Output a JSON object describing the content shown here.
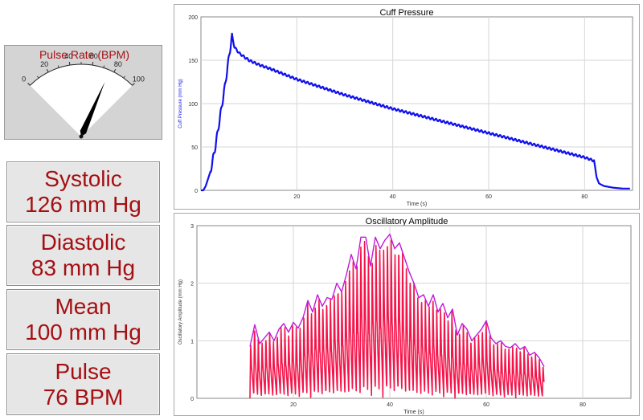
{
  "gauge": {
    "title": "Pulse Rate (BPM)",
    "ticks": [
      "0",
      "20",
      "40",
      "60",
      "80",
      "100"
    ],
    "min": 0,
    "max": 100,
    "value": 76,
    "title_color": "#a50f12",
    "needle_color": "#000000"
  },
  "readouts": [
    {
      "label": "Systolic",
      "value": "126 mm Hg"
    },
    {
      "label": "Diastolic",
      "value": "83 mm Hg"
    },
    {
      "label": "Mean",
      "value": "100 mm Hg"
    },
    {
      "label": "Pulse",
      "value": "76 BPM"
    }
  ],
  "chart_data": [
    {
      "type": "line",
      "title": "Cuff Pressure",
      "xlabel": "Time (s)",
      "ylabel": "Cuff Pressure (mm Hg)",
      "xlim": [
        0,
        90
      ],
      "ylim": [
        0,
        200
      ],
      "xticks": [
        20,
        40,
        60,
        80
      ],
      "yticks": [
        0,
        50,
        100,
        150,
        200
      ],
      "grid": true,
      "color": "#1010ee",
      "series": [
        {
          "x": [
            0,
            0.5,
            1,
            2,
            3,
            4,
            5,
            5.5,
            6,
            6.5,
            7,
            8,
            10,
            12,
            15,
            20,
            25,
            30,
            35,
            40,
            45,
            50,
            55,
            60,
            65,
            70,
            75,
            80,
            82,
            82.5,
            83,
            84,
            86,
            88,
            89.5
          ],
          "y": [
            0,
            0,
            5,
            22,
            50,
            85,
            120,
            140,
            160,
            178,
            165,
            158,
            150,
            145,
            139,
            128,
            119,
            110,
            102,
            94,
            87,
            80,
            73,
            66,
            59,
            52,
            45,
            38,
            34,
            15,
            8,
            5,
            3,
            2,
            2
          ]
        }
      ]
    },
    {
      "type": "line",
      "title": "Oscillatory Amplitude",
      "xlabel": "Time (s)",
      "ylabel": "Oscillatory Amplitude (mm Hg)",
      "xlim": [
        0,
        90
      ],
      "ylim": [
        0,
        3
      ],
      "xticks": [
        20,
        40,
        60,
        80
      ],
      "yticks": [
        0,
        1,
        2,
        3
      ],
      "grid": true,
      "color": "#f5144a",
      "envelope_color": "#c21ad8",
      "series": [
        {
          "x": [
            11,
            12,
            13,
            14,
            15,
            16,
            17,
            18,
            19,
            20,
            21,
            22,
            23,
            24,
            25,
            26,
            27,
            28,
            29,
            30,
            31,
            32,
            33,
            34,
            35,
            36,
            37,
            38,
            39,
            40,
            41,
            42,
            43,
            44,
            45,
            46,
            47,
            48,
            49,
            50,
            51,
            52,
            53,
            54,
            55,
            56,
            57,
            58,
            59,
            60,
            61,
            62,
            63,
            64,
            65,
            66,
            67,
            68,
            69,
            70,
            71,
            72
          ],
          "y": [
            0.9,
            1.28,
            0.95,
            1.05,
            1.15,
            1.0,
            1.2,
            1.3,
            1.15,
            1.32,
            1.22,
            1.4,
            1.7,
            1.5,
            1.8,
            1.6,
            1.75,
            1.72,
            2.0,
            1.85,
            2.15,
            2.5,
            2.25,
            2.8,
            2.8,
            2.3,
            2.8,
            2.6,
            2.75,
            2.85,
            2.6,
            2.7,
            2.45,
            2.2,
            2.0,
            1.75,
            1.8,
            1.6,
            1.8,
            1.5,
            1.65,
            1.4,
            1.55,
            1.1,
            1.3,
            1.2,
            1.0,
            1.1,
            1.2,
            1.35,
            1.05,
            0.95,
            1.0,
            0.9,
            0.88,
            0.95,
            0.85,
            0.9,
            0.75,
            0.8,
            0.7,
            0.55
          ]
        }
      ]
    }
  ]
}
